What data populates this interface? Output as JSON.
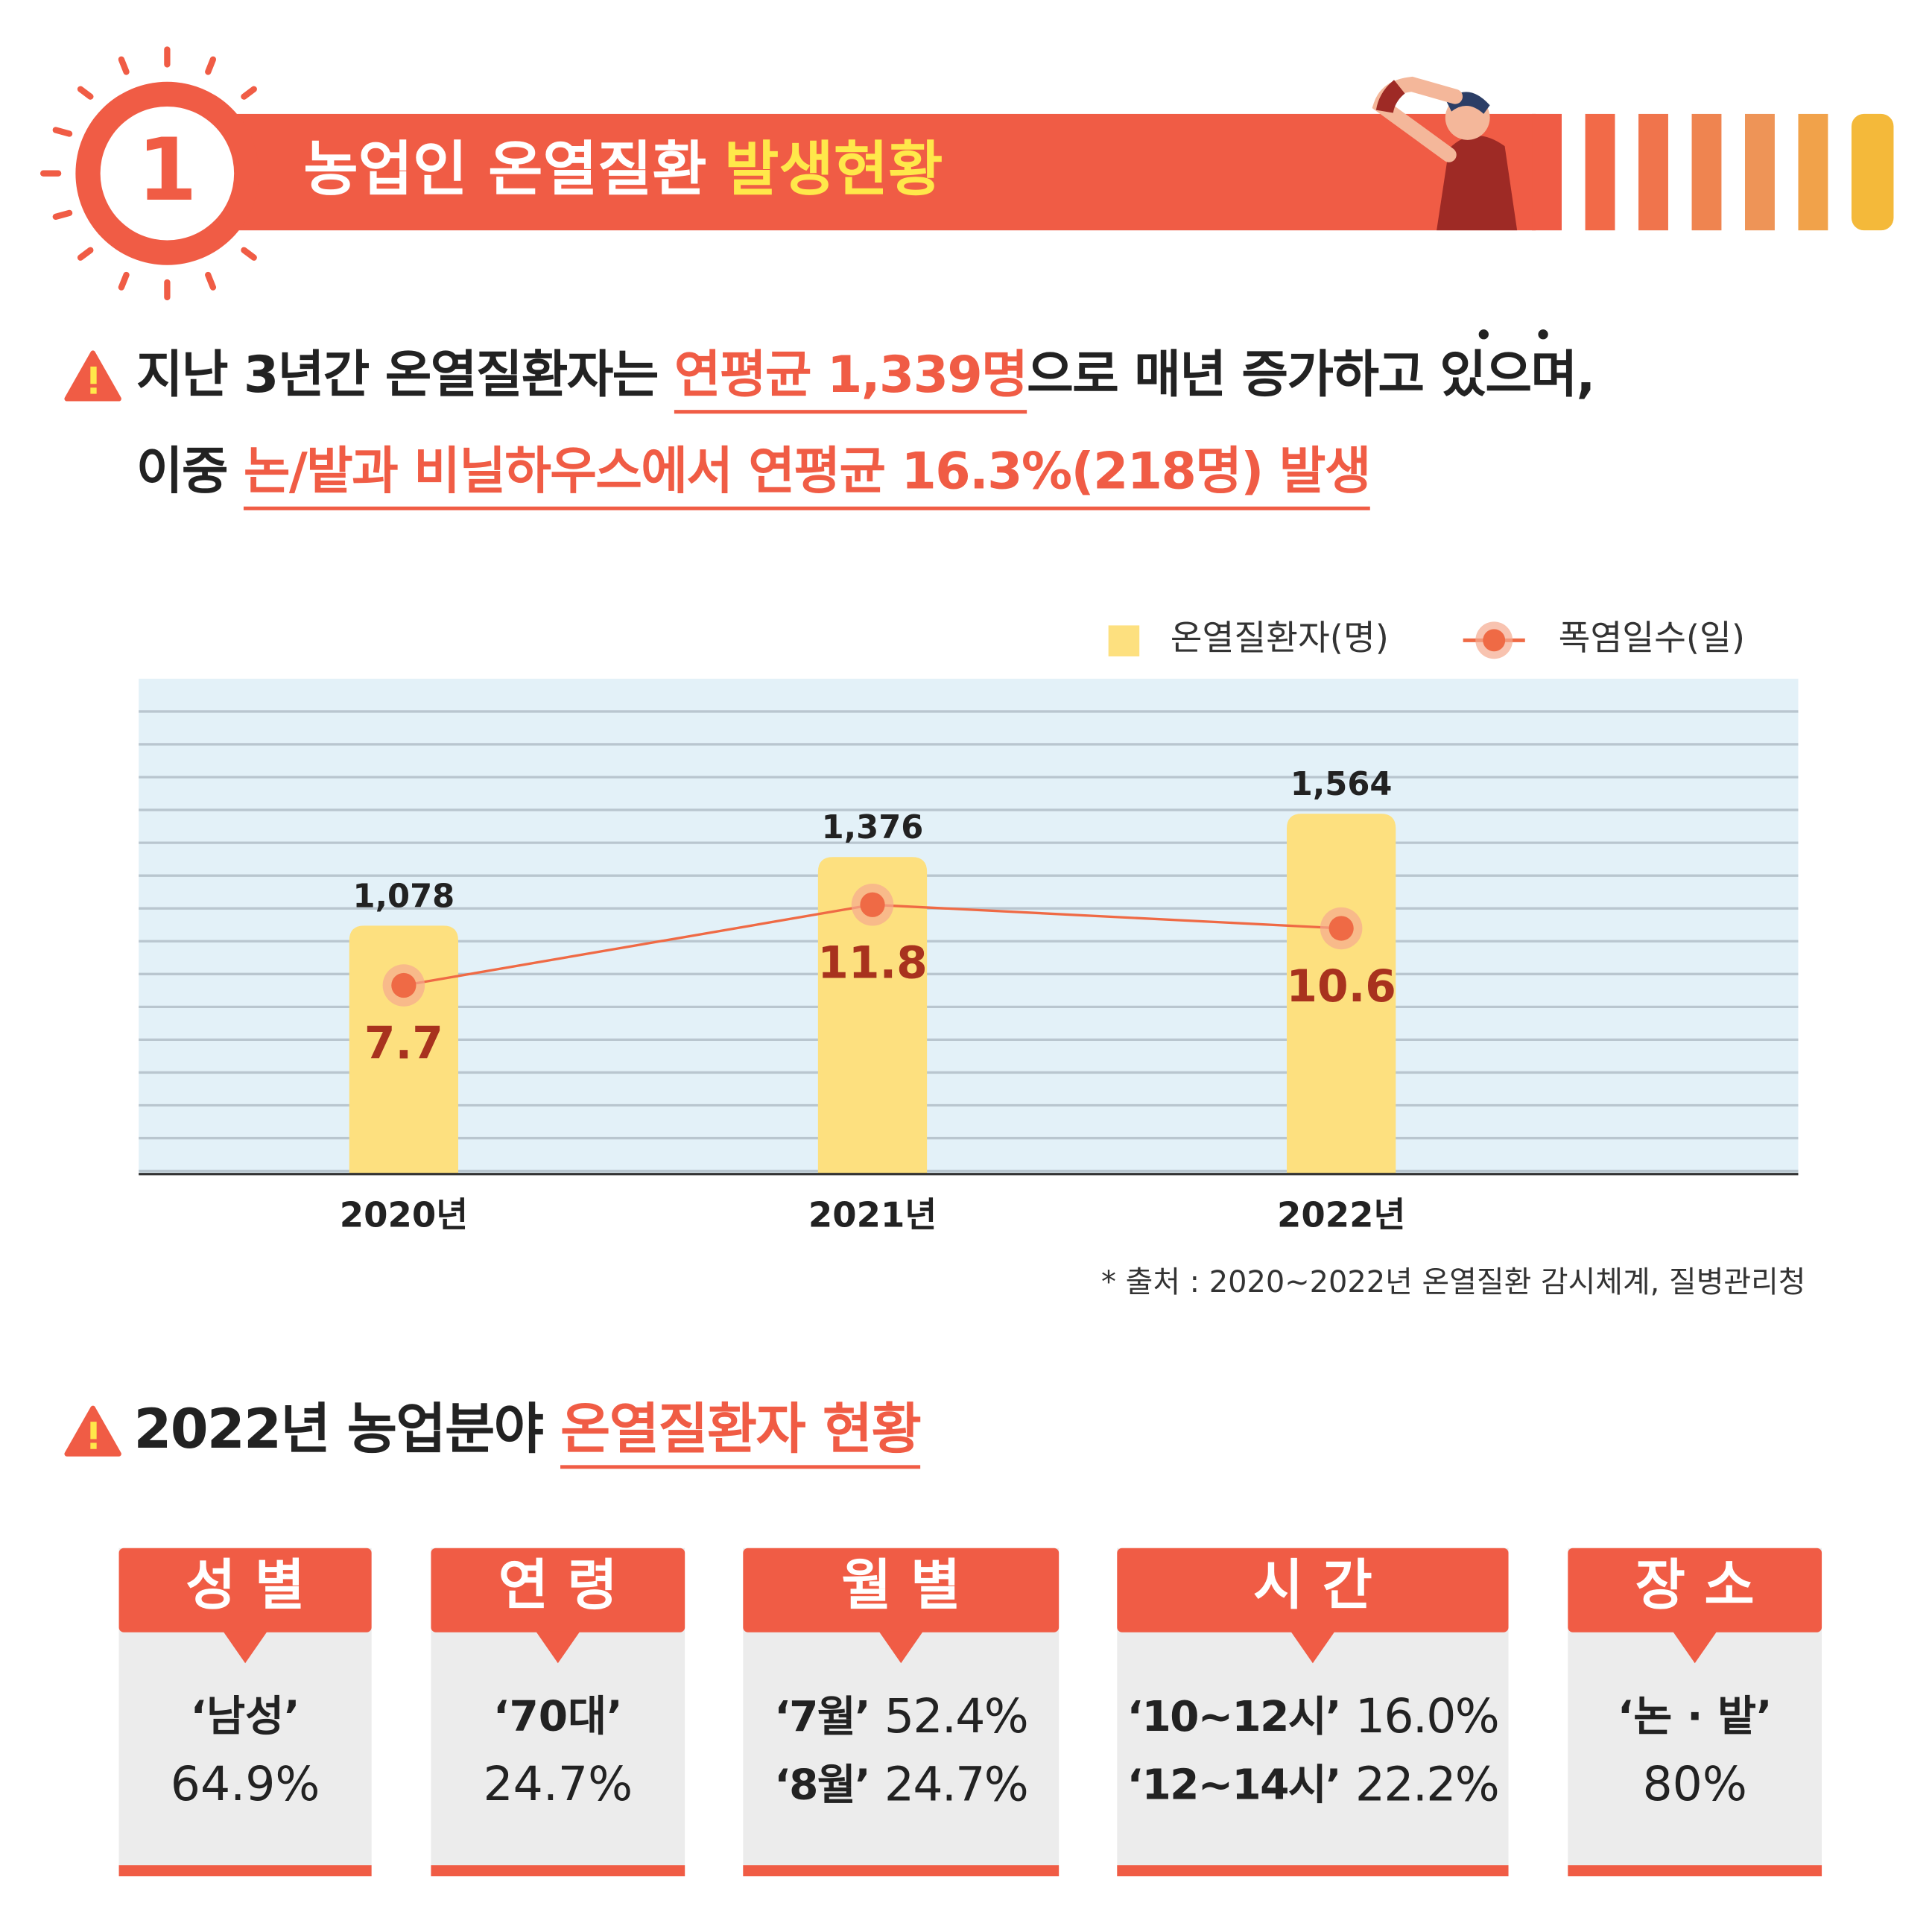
{
  "header": {
    "number": "1",
    "title": "농업인 온열질환",
    "title_highlight": "발생현황"
  },
  "headline": {
    "line1_before": "지난 3년간 온열질환자는 ",
    "line1_highlight": "연평균 1,339명",
    "line1_after": "으로 매년 증가하고 있으며,",
    "line2_before": "이중 ",
    "line2_highlight": "논/밭과 비닐하우스에서 연평균 16.3%(218명) 발생"
  },
  "chart_data": {
    "type": "bar",
    "categories": [
      "2020년",
      "2021년",
      "2022년"
    ],
    "series": [
      {
        "name": "온열질환자(명)",
        "type": "bar",
        "color": "#fde07f",
        "values": [
          1078,
          1376,
          1564
        ],
        "value_labels": [
          "1,078",
          "1,376",
          "1,564"
        ]
      },
      {
        "name": "폭염일수(일)",
        "type": "line",
        "color": "#ef6a45",
        "axis": "y2",
        "values": [
          7.7,
          11.8,
          10.6
        ]
      }
    ],
    "ylim": [
      0,
      2150
    ],
    "y2lim": [
      -1.9,
      23.3
    ],
    "legend": "top-right"
  },
  "source": "* 출처 : 2020~2022년 온열질환 감시체계, 질병관리청",
  "section2": {
    "title": "2022년 농업분야 ",
    "title_highlight": "온열질환자 현황"
  },
  "cards": [
    {
      "title": "성 별",
      "items": [
        {
          "label": "‘남성’",
          "value": "64.9%"
        }
      ]
    },
    {
      "title": "연 령",
      "items": [
        {
          "label": "‘70대’",
          "value": "24.7%"
        }
      ]
    },
    {
      "title": "월 별",
      "items": [
        {
          "label": "‘7월’",
          "value": "52.4%"
        },
        {
          "label": "‘8월’",
          "value": "24.7%"
        }
      ]
    },
    {
      "title": "시 간",
      "items": [
        {
          "label": "‘10~12시’",
          "value": "16.0%"
        },
        {
          "label": "‘12~14시’",
          "value": "22.2%"
        }
      ]
    },
    {
      "title": "장 소",
      "items": [
        {
          "label": "‘논 · 밭’",
          "value": "80%"
        }
      ]
    }
  ]
}
